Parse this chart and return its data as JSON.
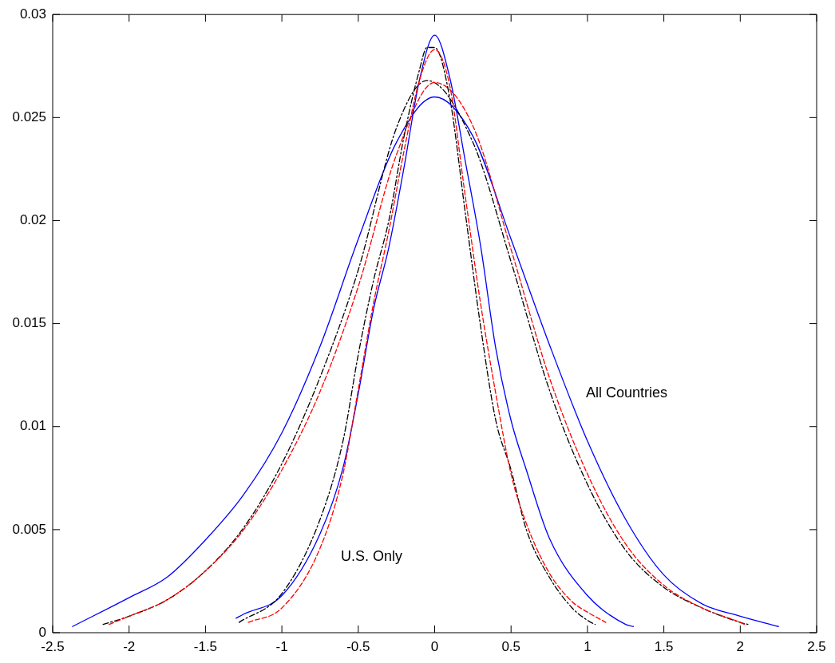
{
  "chart_data": {
    "type": "line",
    "grid": false,
    "legend": false,
    "marker": "none",
    "xlim": [
      -2.5,
      2.5
    ],
    "xticks": [
      -2.5,
      -2,
      -1.5,
      -1,
      -0.5,
      0,
      0.5,
      1,
      1.5,
      2,
      2.5
    ],
    "ylim": [
      0,
      0.03
    ],
    "yticks": [
      0,
      0.005,
      0.01,
      0.015,
      0.02,
      0.025,
      0.03
    ],
    "series": [
      {
        "color": "#0000ff",
        "line_style": "solid",
        "x": [
          -2.37,
          -2,
          -1.75,
          -1.5,
          -1.25,
          -1,
          -0.75,
          -0.5,
          -0.25,
          0,
          0.25,
          0.5,
          0.75,
          1,
          1.25,
          1.5,
          1.75,
          2,
          2.25
        ],
        "values": [
          0.0003,
          0.0017,
          0.0027,
          0.0045,
          0.0067,
          0.0097,
          0.0139,
          0.0191,
          0.0238,
          0.026,
          0.0241,
          0.0191,
          0.014,
          0.0093,
          0.0055,
          0.0028,
          0.0014,
          0.0008,
          0.0003
        ]
      },
      {
        "color": "#000000",
        "line_style": "dashdot",
        "x": [
          -2.17,
          -2,
          -1.75,
          -1.5,
          -1.25,
          -1,
          -0.75,
          -0.5,
          -0.25,
          -0.05,
          0.25,
          0.5,
          0.75,
          1,
          1.25,
          1.5,
          1.75,
          2,
          2.05
        ],
        "values": [
          0.0004,
          0.0008,
          0.0016,
          0.003,
          0.0051,
          0.0082,
          0.0124,
          0.0176,
          0.0245,
          0.0268,
          0.0238,
          0.018,
          0.0118,
          0.0072,
          0.004,
          0.0022,
          0.0012,
          0.0005,
          0.0004
        ]
      },
      {
        "color": "#ff0000",
        "line_style": "dashed",
        "x": [
          -2.13,
          -2,
          -1.75,
          -1.5,
          -1.25,
          -1,
          -0.75,
          -0.5,
          -0.25,
          0,
          0.25,
          0.5,
          0.75,
          1,
          1.25,
          1.5,
          1.75,
          2,
          2.03
        ],
        "values": [
          0.0004,
          0.0008,
          0.0016,
          0.003,
          0.005,
          0.0079,
          0.0117,
          0.0168,
          0.0232,
          0.0267,
          0.0246,
          0.0186,
          0.0124,
          0.0077,
          0.0043,
          0.0023,
          0.0012,
          0.0005,
          0.0004
        ]
      },
      {
        "color": "#0000ff",
        "line_style": "solid",
        "x": [
          -1.3,
          -1.25,
          -1,
          -0.75,
          -0.6,
          -0.5,
          -0.4,
          -0.3,
          -0.2,
          -0.1,
          0,
          0.1,
          0.2,
          0.3,
          0.4,
          0.5,
          0.6,
          0.75,
          1,
          1.25,
          1.3
        ],
        "values": [
          0.0007,
          0.0009,
          0.0018,
          0.0048,
          0.008,
          0.0116,
          0.0157,
          0.0187,
          0.0226,
          0.0268,
          0.029,
          0.0269,
          0.0229,
          0.0188,
          0.0138,
          0.0103,
          0.0079,
          0.0046,
          0.0018,
          0.0004,
          0.0003
        ]
      },
      {
        "color": "#000000",
        "line_style": "dashdot",
        "x": [
          -1.28,
          -1,
          -0.75,
          -0.6,
          -0.5,
          -0.4,
          -0.3,
          -0.2,
          -0.1,
          -0.05,
          0,
          0.1,
          0.2,
          0.3,
          0.4,
          0.5,
          0.6,
          0.75,
          0.9,
          1,
          1.05
        ],
        "values": [
          0.0005,
          0.0019,
          0.0055,
          0.0093,
          0.0135,
          0.0171,
          0.02,
          0.0241,
          0.0273,
          0.0284,
          0.0284,
          0.0259,
          0.0204,
          0.0149,
          0.0103,
          0.0079,
          0.005,
          0.0027,
          0.0012,
          0.0006,
          0.0004
        ]
      },
      {
        "color": "#ff0000",
        "line_style": "dashed",
        "x": [
          -1.22,
          -1,
          -0.75,
          -0.6,
          -0.5,
          -0.4,
          -0.3,
          -0.2,
          -0.1,
          0,
          0.1,
          0.2,
          0.3,
          0.4,
          0.5,
          0.6,
          0.75,
          0.9,
          1,
          1.12
        ],
        "values": [
          0.0005,
          0.0012,
          0.0041,
          0.0077,
          0.0118,
          0.016,
          0.0195,
          0.0234,
          0.0268,
          0.0283,
          0.0265,
          0.0212,
          0.016,
          0.0116,
          0.0077,
          0.0053,
          0.0029,
          0.0015,
          0.001,
          0.0005
        ]
      }
    ],
    "annotations": [
      "All Countries",
      "U.S. Only"
    ]
  }
}
